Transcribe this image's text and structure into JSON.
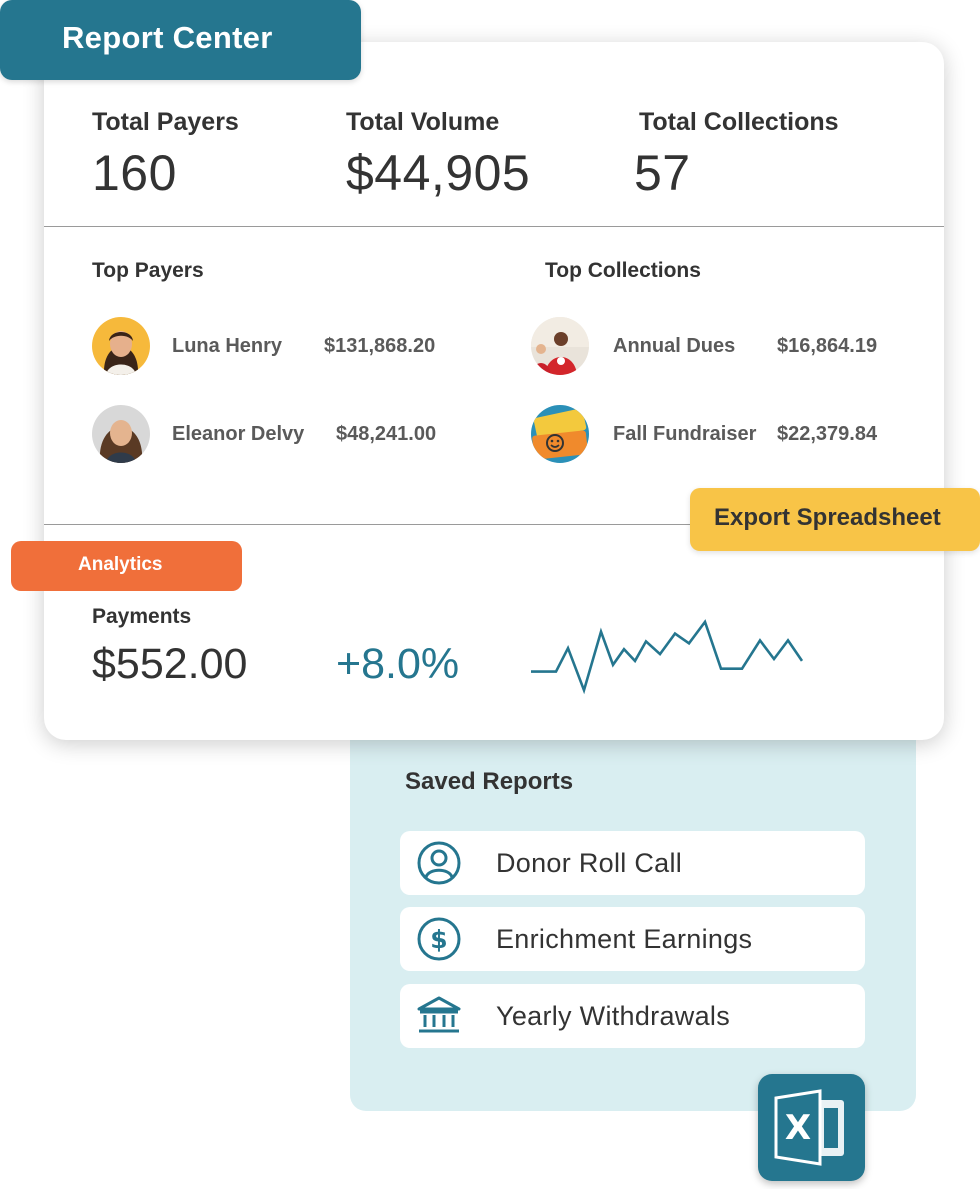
{
  "header": {
    "title": "Report Center"
  },
  "stats": [
    {
      "label": "Total Payers",
      "value": "160"
    },
    {
      "label": "Total Volume",
      "value": "$44,905"
    },
    {
      "label": "Total Collections",
      "value": "57"
    }
  ],
  "top_payers": {
    "title": "Top Payers",
    "rows": [
      {
        "name": "Luna Henry",
        "amount": "$131,868.20"
      },
      {
        "name": "Eleanor Delvy",
        "amount": "$48,241.00"
      }
    ]
  },
  "top_collections": {
    "title": "Top Collections",
    "rows": [
      {
        "name": "Annual Dues",
        "amount": "$16,864.19"
      },
      {
        "name": "Fall Fundraiser",
        "amount": "$22,379.84"
      }
    ]
  },
  "export_button": {
    "label": "Export Spreadsheet"
  },
  "analytics": {
    "tab_label": "Analytics",
    "payments_label": "Payments",
    "payments_value": "$552.00",
    "change": "+8.0%",
    "trend": [
      5,
      5,
      29,
      -14,
      46,
      12,
      28,
      16,
      36,
      23,
      44,
      34,
      56,
      8,
      8,
      37,
      18,
      37,
      16
    ]
  },
  "saved_reports": {
    "title": "Saved Reports",
    "items": [
      {
        "label": "Donor Roll Call",
        "icon": "user-icon"
      },
      {
        "label": "Enrichment Earnings",
        "icon": "dollar-icon"
      },
      {
        "label": "Yearly Withdrawals",
        "icon": "bank-icon"
      }
    ]
  },
  "excel": {
    "icon": "excel-icon",
    "letter": "X"
  },
  "colors": {
    "teal": "#25768f",
    "orange": "#f06f3a",
    "yellow": "#f8c447",
    "panel": "#d9eef1"
  }
}
